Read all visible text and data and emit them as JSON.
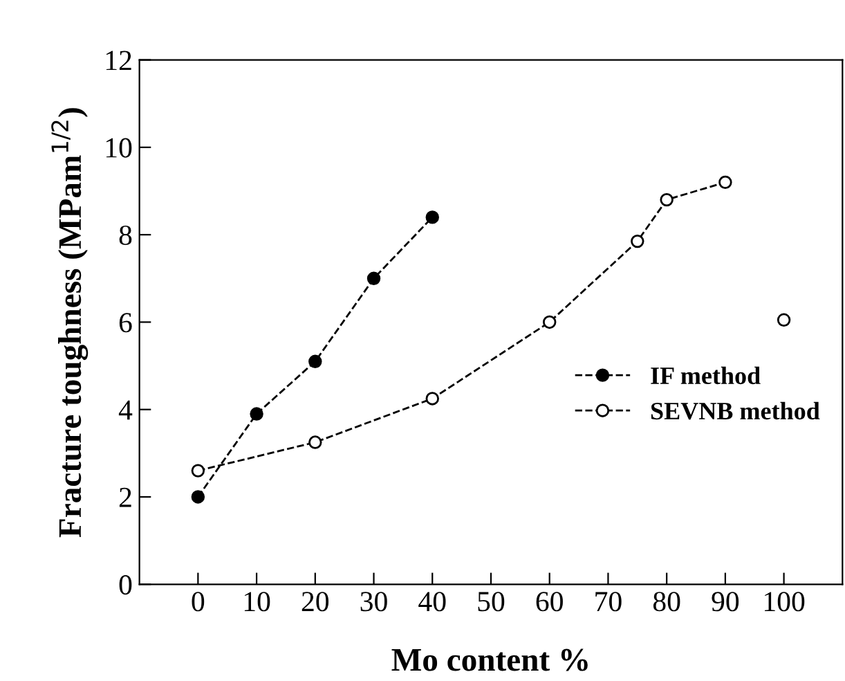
{
  "chart_data": {
    "type": "line",
    "xlabel": "Mo content %",
    "ylabel": "Fracture toughness (MPam$^{1/2}$)",
    "xlim": [
      -10,
      110
    ],
    "xticks": [
      0,
      10,
      20,
      30,
      40,
      50,
      60,
      70,
      80,
      90,
      100
    ],
    "ylim": [
      0,
      12
    ],
    "yticks": [
      0,
      2,
      4,
      6,
      8,
      10,
      12
    ],
    "grid": false,
    "legend": "right",
    "line_style": "dashed",
    "marker": "circle",
    "series": [
      {
        "name": "IF method",
        "color": "#000000",
        "x": [
          0,
          10,
          20,
          30,
          40
        ],
        "values": [
          2.0,
          3.9,
          5.1,
          7.0,
          8.4
        ]
      },
      {
        "name": "SEVNB method",
        "color": "#000000",
        "x": [
          0,
          20,
          40,
          60,
          75,
          80,
          90
        ],
        "values": [
          2.6,
          3.25,
          4.25,
          6.0,
          7.85,
          8.8,
          9.2
        ]
      },
      {
        "type": "scatter",
        "color": "#000000",
        "x": [
          100
        ],
        "values": [
          6.05
        ]
      }
    ]
  }
}
